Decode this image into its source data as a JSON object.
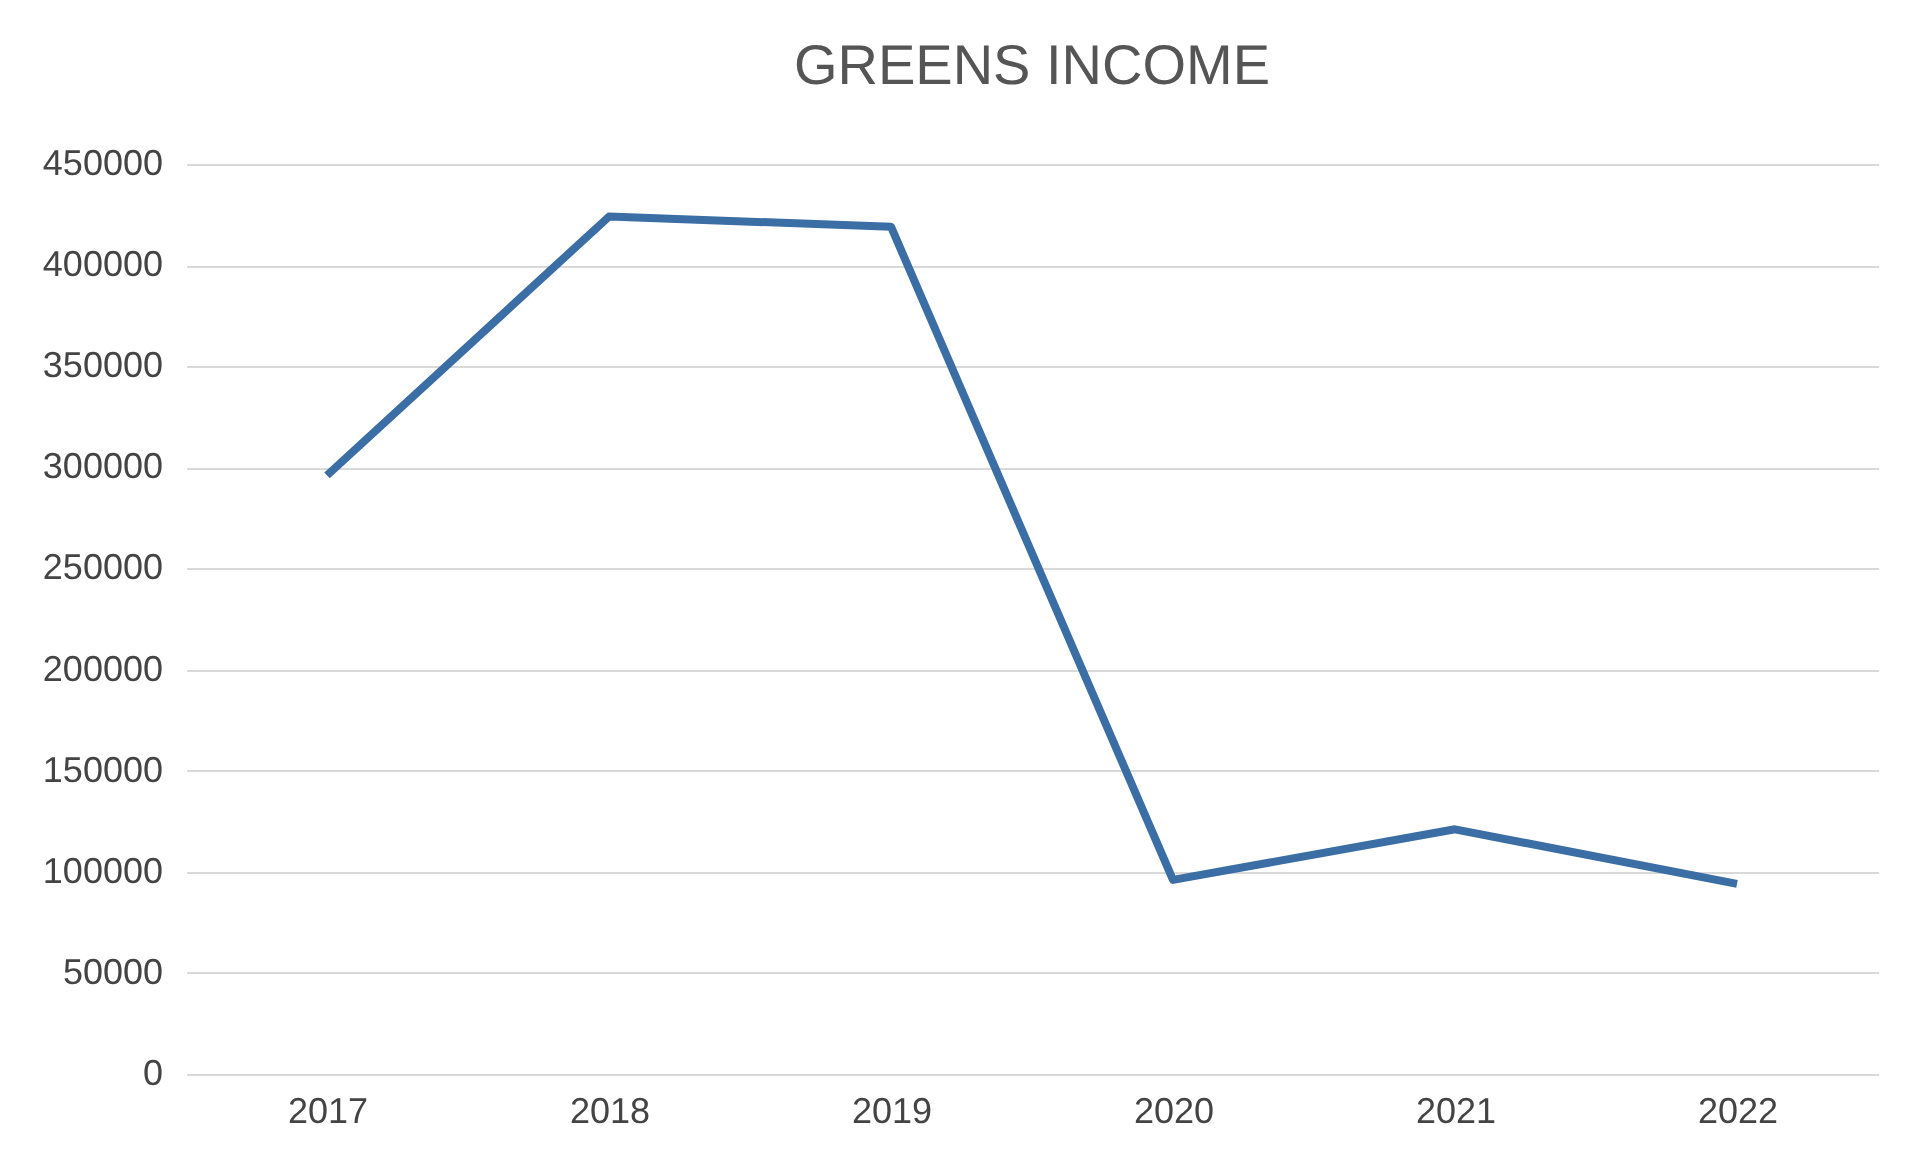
{
  "chart_data": {
    "type": "line",
    "title": "GREENS INCOME",
    "categories": [
      "2017",
      "2018",
      "2019",
      "2020",
      "2021",
      "2022"
    ],
    "series": [
      {
        "color": "#3a6ea5",
        "values": [
          296000,
          424000,
          419000,
          96000,
          121000,
          94000
        ]
      }
    ],
    "ylim": [
      0,
      450000
    ],
    "yticks": [
      0,
      50000,
      100000,
      150000,
      200000,
      250000,
      300000,
      350000,
      400000,
      450000
    ],
    "grid": "y",
    "legend": false,
    "marker": "none",
    "line_style": "solid"
  }
}
